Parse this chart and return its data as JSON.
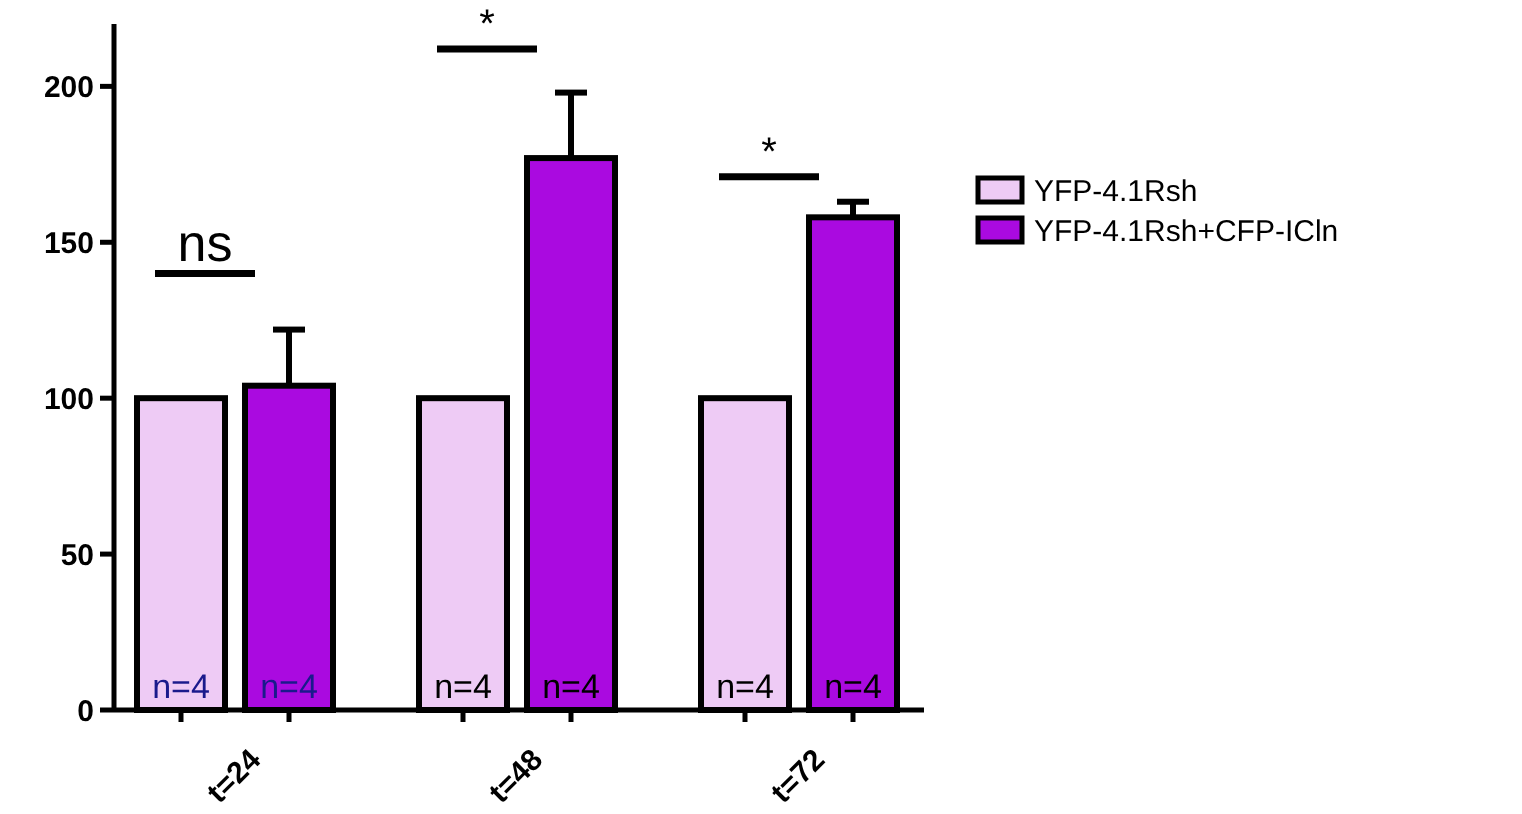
{
  "chart_data": {
    "type": "bar",
    "categories": [
      "t=24",
      "t=48",
      "t=72"
    ],
    "series": [
      {
        "name": "YFP-4.1Rsh",
        "color": "#eecbf5",
        "values": [
          100,
          100,
          100
        ]
      },
      {
        "name": "YFP-4.1Rsh+CFP-ICln",
        "color": "#aa0ae0",
        "values": [
          104,
          177,
          158
        ],
        "errors": [
          [
            104,
            122
          ],
          [
            177,
            198
          ],
          [
            158,
            163
          ]
        ]
      }
    ],
    "ylim": [
      0,
      220
    ],
    "yticks": [
      0,
      50,
      100,
      150,
      200
    ],
    "grid": false,
    "legend": "right",
    "annotations": [
      "ns",
      "*",
      "*",
      "n=4",
      "n=4",
      "n=4",
      "n=4",
      "n=4",
      "n=4"
    ]
  }
}
